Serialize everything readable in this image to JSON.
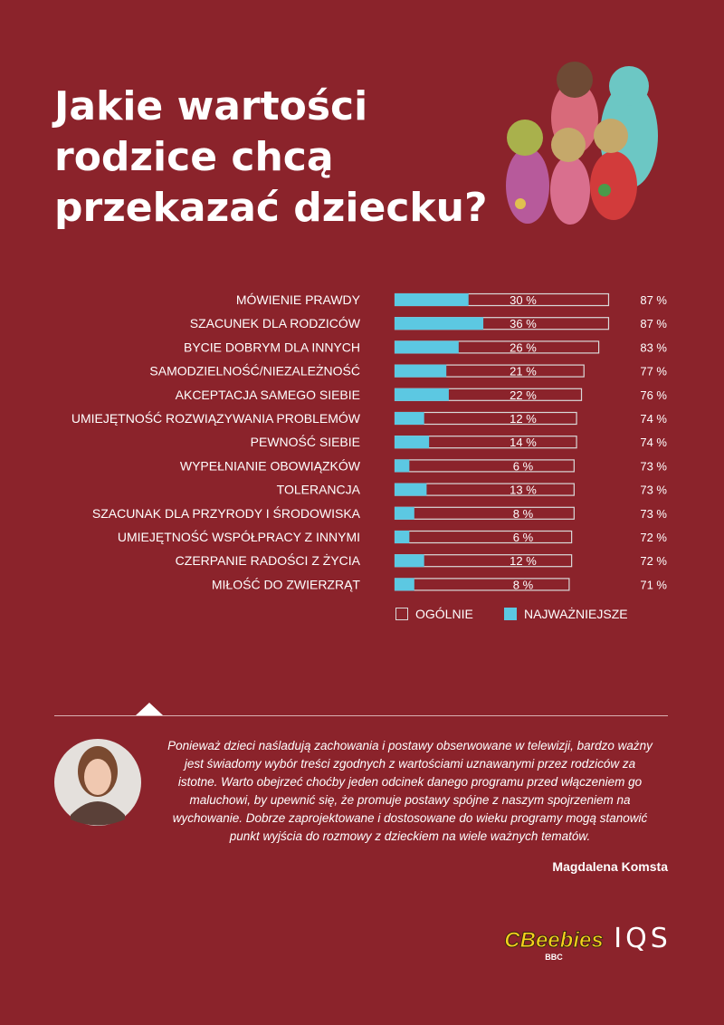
{
  "chart_data": {
    "type": "bar",
    "title": [
      "Jakie wartości",
      "rodzice chcą",
      "przekazać dziecku?"
    ],
    "categories": [
      "MÓWIENIE PRAWDY",
      "SZACUNEK DLA RODZICÓW",
      "BYCIE DOBRYM DLA INNYCH",
      "SAMODZIELNOŚĆ/NIEZALEŻNOŚĆ",
      "AKCEPTACJA SAMEGO SIEBIE",
      "UMIEJĘTNOŚĆ ROZWIĄZYWANIA PROBLEMÓW",
      "PEWNOŚĆ SIEBIE",
      "WYPEŁNIANIE OBOWIĄZKÓW",
      "TOLERANCJA",
      "SZACUNAK DLA PRZYRODY I ŚRODOWISKA",
      "UMIEJĘTNOŚĆ WSPÓŁPRACY Z INNYMI",
      "CZERPANIE RADOŚCI Z ŻYCIA",
      "MIŁOŚĆ DO ZWIERZRĄT"
    ],
    "series": [
      {
        "name": "OGÓLNIE",
        "color": "#d9d9d9",
        "values": [
          87,
          87,
          83,
          77,
          76,
          74,
          74,
          73,
          73,
          73,
          72,
          72,
          71
        ],
        "value_labels": [
          "87 %",
          "87 %",
          "83 %",
          "77 %",
          "76 %",
          "74 %",
          "74 %",
          "73 %",
          "73 %",
          "73 %",
          "72 %",
          "72 %",
          "71 %"
        ]
      },
      {
        "name": "NAJWAŻNIEJSZE",
        "color": "#5cc8e2",
        "values": [
          30,
          36,
          26,
          21,
          22,
          12,
          14,
          6,
          13,
          8,
          6,
          12,
          8
        ],
        "value_labels": [
          "30 %",
          "36 %",
          "26 %",
          "21 %",
          "22 %",
          "12 %",
          "14 %",
          "6 %",
          "13 %",
          "8 %",
          "6 %",
          "12 %",
          "8 %"
        ]
      }
    ]
  },
  "quote": {
    "lines": [
      "Ponieważ dzieci naśladują zachowania i postawy obserwowane w telewizji, bardzo ważny",
      "jest świadomy wybór treści zgodnych z wartościami uznawanymi przez rodziców za",
      "istotne. Warto obejrzeć choćby jeden odcinek danego programu przed włączeniem go",
      "maluchowi, by upewnić się, że promuje postawy spójne z naszym spojrzeniem na",
      "wychowanie. Dobrze zaprojektowane i dostosowane do wieku programy mogą stanowić",
      "punkt wyjścia do rozmowy z dzieckiem na wiele ważnych tematów."
    ],
    "author": "Magdalena Komsta"
  },
  "logos": {
    "cbeebies": "CBeebies",
    "bbc": "BBC",
    "iqs": "IQS"
  }
}
